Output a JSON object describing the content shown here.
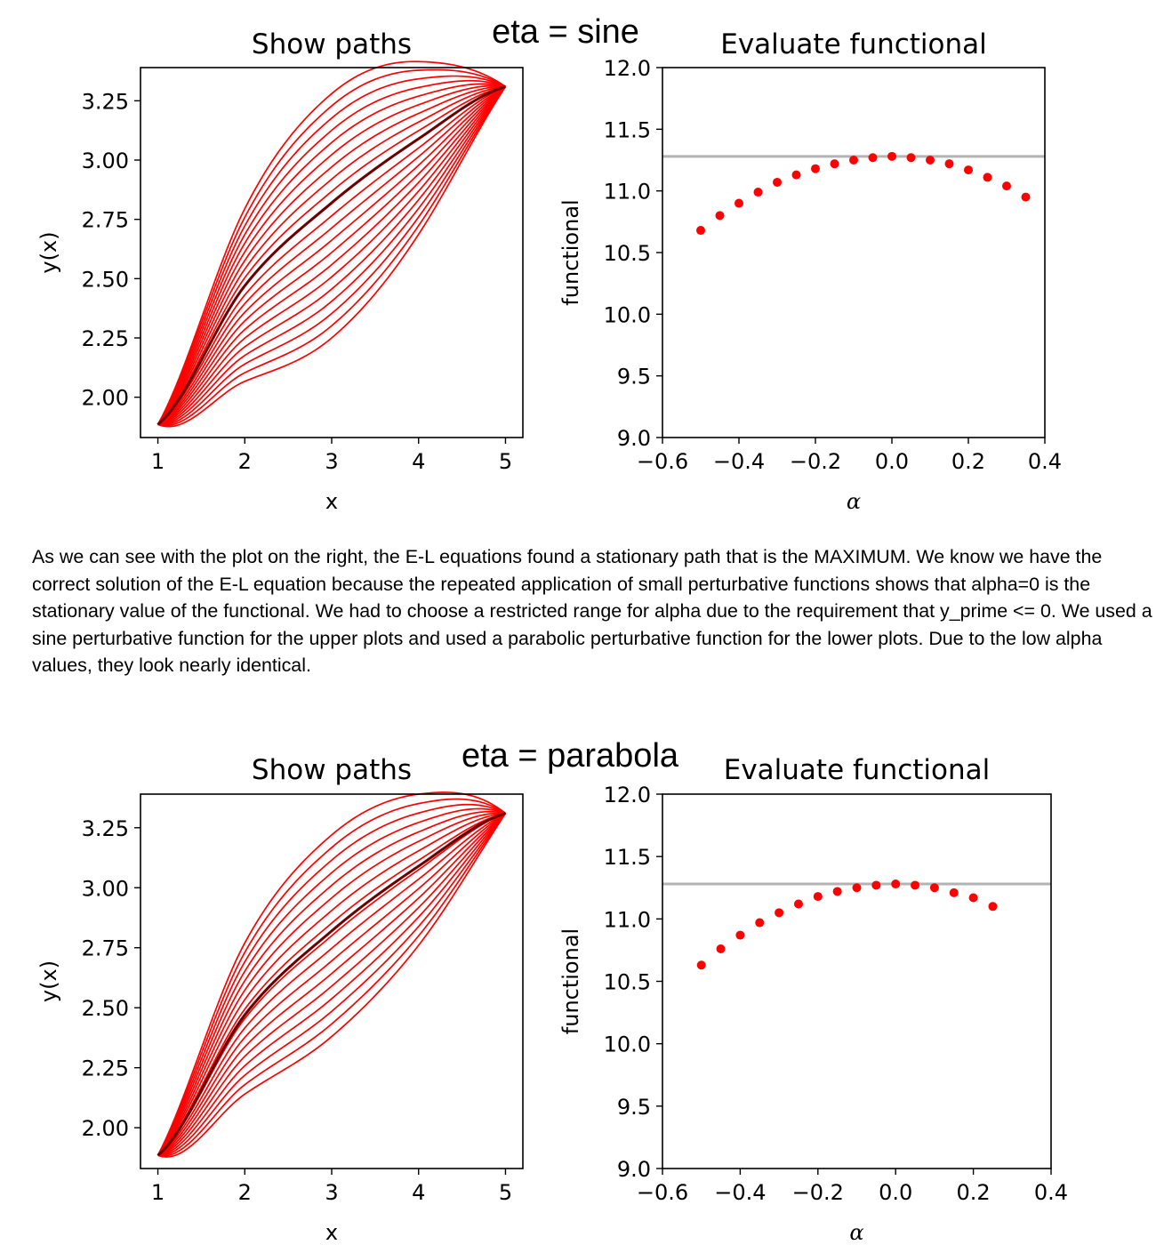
{
  "paragraph": "As we can see with the plot on the right, the E-L equations found a stationary path that is the MAXIMUM. We know we have the correct solution of the E-L equation because the repeated application of small perturbative functions shows that alpha=0 is the stationary value of the functional. We had to choose a restricted range for alpha due to the requirement that y_prime <= 0. We used a sine perturbative function for the upper plots and used a parabolic perturbative function for the lower plots. Due to the low alpha values, they look nearly identical.",
  "colors": {
    "path": "#ff0000",
    "optimal_path": "#6b0000",
    "reference_line": "#b3b3b3",
    "points": "#ff0000"
  },
  "chart_data": [
    {
      "type": "line",
      "figure_label": "eta = sine",
      "title": "Show paths",
      "xlabel": "x",
      "ylabel": "y(x)",
      "xlim": [
        0.8,
        5.2
      ],
      "ylim": [
        1.83,
        3.39
      ],
      "xticks": [
        "1",
        "2",
        "3",
        "4",
        "5"
      ],
      "yticks": [
        "2.00",
        "2.25",
        "2.50",
        "2.75",
        "3.00",
        "3.25"
      ],
      "start": [
        1.0,
        1.885
      ],
      "end": [
        5.0,
        3.31
      ],
      "midpoint_curve_x": [
        1.0,
        2.0,
        3.0,
        4.0,
        5.0
      ],
      "optimal_path_y": [
        1.885,
        2.47,
        2.82,
        3.09,
        3.31
      ],
      "perturbation": "sine",
      "mid_range_y": [
        2.25,
        3.28
      ],
      "n_paths": 21
    },
    {
      "type": "scatter",
      "title": "Evaluate functional",
      "xlabel": "α",
      "ylabel": "functional",
      "xlim": [
        -0.6,
        0.4
      ],
      "ylim": [
        9.0,
        12.0
      ],
      "xticks": [
        "−0.6",
        "−0.4",
        "−0.2",
        "0.0",
        "0.2",
        "0.4"
      ],
      "yticks": [
        "9.0",
        "9.5",
        "10.0",
        "10.5",
        "11.0",
        "11.5",
        "12.0"
      ],
      "hline": 11.28,
      "x": [
        -0.5,
        -0.45,
        -0.4,
        -0.35,
        -0.3,
        -0.25,
        -0.2,
        -0.15,
        -0.1,
        -0.05,
        0.0,
        0.05,
        0.1,
        0.15,
        0.2,
        0.25,
        0.3,
        0.35
      ],
      "y": [
        10.68,
        10.8,
        10.9,
        10.99,
        11.07,
        11.13,
        11.18,
        11.22,
        11.25,
        11.27,
        11.28,
        11.27,
        11.25,
        11.22,
        11.17,
        11.11,
        11.04,
        10.95
      ]
    },
    {
      "type": "line",
      "figure_label": "eta = parabola",
      "title": "Show paths",
      "xlabel": "x",
      "ylabel": "y(x)",
      "xlim": [
        0.8,
        5.2
      ],
      "ylim": [
        1.83,
        3.39
      ],
      "xticks": [
        "1",
        "2",
        "3",
        "4",
        "5"
      ],
      "yticks": [
        "2.00",
        "2.25",
        "2.50",
        "2.75",
        "3.00",
        "3.25"
      ],
      "start": [
        1.0,
        1.885
      ],
      "end": [
        5.0,
        3.31
      ],
      "midpoint_curve_x": [
        1.0,
        2.0,
        3.0,
        4.0,
        5.0
      ],
      "optimal_path_y": [
        1.885,
        2.47,
        2.82,
        3.09,
        3.31
      ],
      "perturbation": "parabola",
      "mid_range_y": [
        2.38,
        3.22
      ],
      "n_paths": 17
    },
    {
      "type": "scatter",
      "title": "Evaluate functional",
      "xlabel": "α",
      "ylabel": "functional",
      "xlim": [
        -0.6,
        0.4
      ],
      "ylim": [
        9.0,
        12.0
      ],
      "xticks": [
        "−0.6",
        "−0.4",
        "−0.2",
        "0.0",
        "0.2",
        "0.4"
      ],
      "yticks": [
        "9.0",
        "9.5",
        "10.0",
        "10.5",
        "11.0",
        "11.5",
        "12.0"
      ],
      "hline": 11.28,
      "x": [
        -0.5,
        -0.45,
        -0.4,
        -0.35,
        -0.3,
        -0.25,
        -0.2,
        -0.15,
        -0.1,
        -0.05,
        0.0,
        0.05,
        0.1,
        0.15,
        0.2,
        0.25
      ],
      "y": [
        10.63,
        10.76,
        10.87,
        10.97,
        11.05,
        11.12,
        11.18,
        11.22,
        11.25,
        11.27,
        11.28,
        11.27,
        11.25,
        11.21,
        11.17,
        11.1
      ]
    }
  ]
}
